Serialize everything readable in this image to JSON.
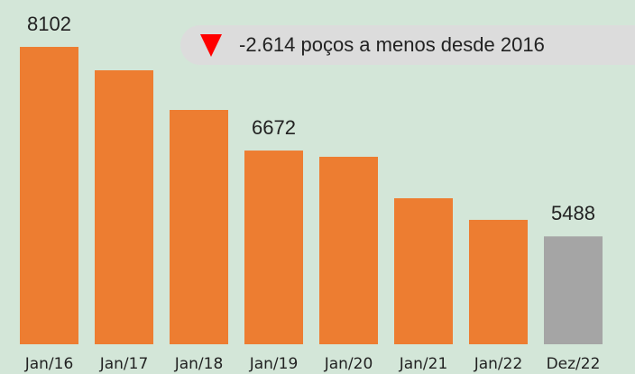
{
  "chart_data": {
    "type": "bar",
    "categories": [
      "Jan/16",
      "Jan/17",
      "Jan/18",
      "Jan/19",
      "Jan/20",
      "Jan/21",
      "Jan/22",
      "Dez/22"
    ],
    "values": [
      8102,
      7779,
      7232,
      6672,
      6586,
      6014,
      5716,
      5488
    ],
    "value_labels": [
      "8102",
      null,
      null,
      "6672",
      null,
      null,
      null,
      "5488"
    ],
    "colors": [
      "#ed7d31",
      "#ed7d31",
      "#ed7d31",
      "#ed7d31",
      "#ed7d31",
      "#ed7d31",
      "#ed7d31",
      "#a5a5a5"
    ],
    "ylim": [
      4000,
      8500
    ],
    "annotation": "-2.614 poços a menos desde 2016"
  }
}
